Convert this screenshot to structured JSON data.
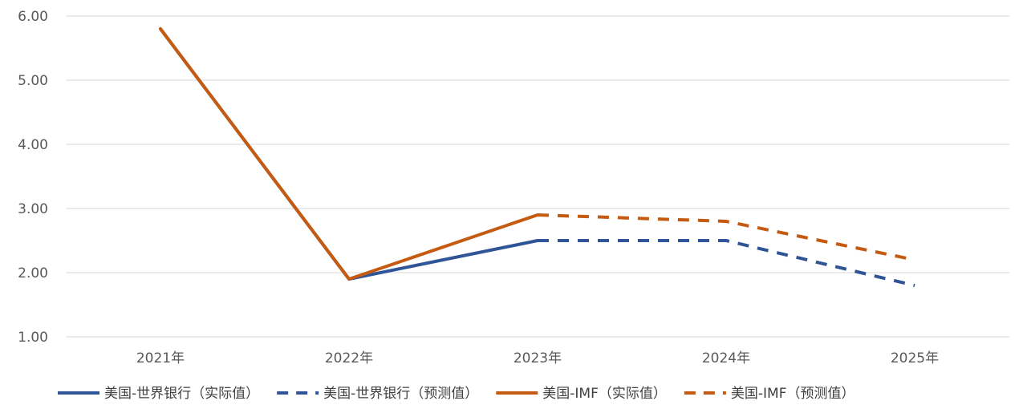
{
  "chart_data": {
    "type": "line",
    "title": "",
    "xlabel": "",
    "ylabel": "",
    "categories": [
      "2021年",
      "2022年",
      "2023年",
      "2024年",
      "2025年"
    ],
    "ylim": [
      1.0,
      6.0
    ],
    "yticks": [
      "1.00",
      "2.00",
      "3.00",
      "4.00",
      "5.00",
      "6.00"
    ],
    "grid": true,
    "legend_position": "bottom",
    "series": [
      {
        "name": "美国-世界银行（实际值）",
        "style": "solid",
        "color": "#2F5597",
        "values": [
          5.8,
          1.9,
          2.5,
          null,
          null
        ]
      },
      {
        "name": "美国-世界银行（预测值）",
        "style": "dashed",
        "color": "#2F5597",
        "values": [
          null,
          null,
          2.5,
          2.5,
          1.8
        ]
      },
      {
        "name": "美国-IMF（实际值）",
        "style": "solid",
        "color": "#C55A11",
        "values": [
          5.8,
          1.9,
          2.9,
          null,
          null
        ]
      },
      {
        "name": "美国-IMF（预测值）",
        "style": "dashed",
        "color": "#C55A11",
        "values": [
          null,
          null,
          2.9,
          2.8,
          2.2
        ]
      }
    ]
  }
}
